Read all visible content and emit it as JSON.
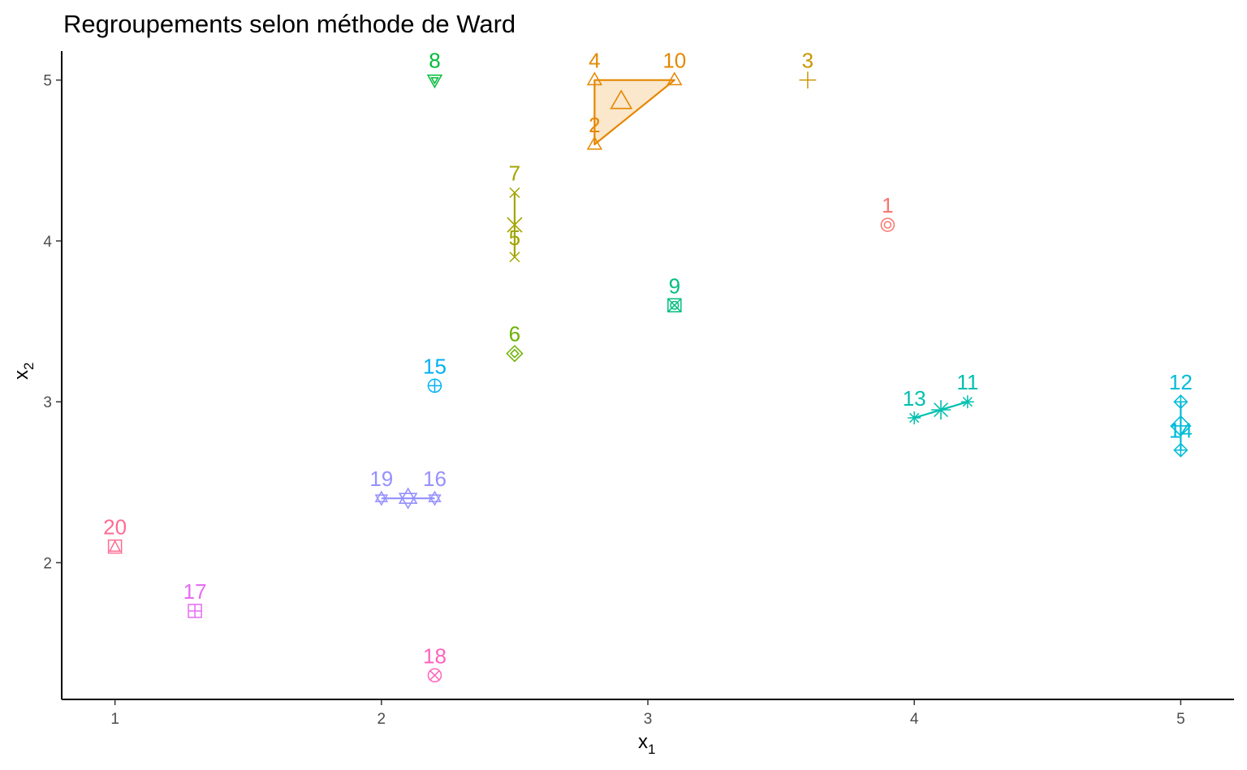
{
  "chart_data": {
    "type": "scatter",
    "title": "Regroupements selon méthode de Ward",
    "xlabel": "x",
    "xlabel_sub": "1",
    "ylabel": "x",
    "ylabel_sub": "2",
    "xlim": [
      0.8,
      5.2
    ],
    "ylim": [
      1.15,
      5.18
    ],
    "x_ticks": [
      1,
      2,
      3,
      4,
      5
    ],
    "y_ticks": [
      2,
      3,
      4,
      5
    ],
    "grid": false,
    "points": [
      {
        "id": "1",
        "x": 3.9,
        "y": 4.1,
        "cluster": 1
      },
      {
        "id": "2",
        "x": 2.8,
        "y": 4.6,
        "cluster": 2
      },
      {
        "id": "3",
        "x": 3.6,
        "y": 5.0,
        "cluster": 3
      },
      {
        "id": "4",
        "x": 2.8,
        "y": 5.0,
        "cluster": 2
      },
      {
        "id": "5",
        "x": 2.5,
        "y": 3.9,
        "cluster": 4
      },
      {
        "id": "6",
        "x": 2.5,
        "y": 3.3,
        "cluster": 5
      },
      {
        "id": "7",
        "x": 2.5,
        "y": 4.3,
        "cluster": 4
      },
      {
        "id": "8",
        "x": 2.2,
        "y": 5.0,
        "cluster": 6
      },
      {
        "id": "9",
        "x": 3.1,
        "y": 3.6,
        "cluster": 7
      },
      {
        "id": "10",
        "x": 3.1,
        "y": 5.0,
        "cluster": 2
      },
      {
        "id": "11",
        "x": 4.2,
        "y": 3.0,
        "cluster": 8
      },
      {
        "id": "12",
        "x": 5.0,
        "y": 3.0,
        "cluster": 9
      },
      {
        "id": "13",
        "x": 4.0,
        "y": 2.9,
        "cluster": 8
      },
      {
        "id": "14",
        "x": 5.0,
        "y": 2.7,
        "cluster": 9
      },
      {
        "id": "15",
        "x": 2.2,
        "y": 3.1,
        "cluster": 10
      },
      {
        "id": "16",
        "x": 2.2,
        "y": 2.4,
        "cluster": 11
      },
      {
        "id": "17",
        "x": 1.3,
        "y": 1.7,
        "cluster": 12
      },
      {
        "id": "18",
        "x": 2.2,
        "y": 1.3,
        "cluster": 13
      },
      {
        "id": "19",
        "x": 2.0,
        "y": 2.4,
        "cluster": 11
      },
      {
        "id": "20",
        "x": 1.0,
        "y": 2.1,
        "cluster": 14
      }
    ],
    "clusters": [
      {
        "id": 1,
        "color": "#F8766D",
        "shape": "circle-ring"
      },
      {
        "id": 2,
        "color": "#E58700",
        "shape": "triangle"
      },
      {
        "id": 3,
        "color": "#C99800",
        "shape": "plus"
      },
      {
        "id": 4,
        "color": "#A3A500",
        "shape": "cross"
      },
      {
        "id": 5,
        "color": "#6BB100",
        "shape": "diamond"
      },
      {
        "id": 6,
        "color": "#00BA38",
        "shape": "triangle-down"
      },
      {
        "id": 7,
        "color": "#00BF7D",
        "shape": "square-cross"
      },
      {
        "id": 8,
        "color": "#00C0AF",
        "shape": "asterisk"
      },
      {
        "id": 9,
        "color": "#00BCD8",
        "shape": "diamond-plus"
      },
      {
        "id": 10,
        "color": "#00B0F6",
        "shape": "circle-plus"
      },
      {
        "id": 11,
        "color": "#9590FF",
        "shape": "star-david"
      },
      {
        "id": 12,
        "color": "#E76BF3",
        "shape": "square-plus"
      },
      {
        "id": 13,
        "color": "#FF62BC",
        "shape": "circle-cross"
      },
      {
        "id": 14,
        "color": "#FF6C91",
        "shape": "square-triangle"
      }
    ]
  }
}
